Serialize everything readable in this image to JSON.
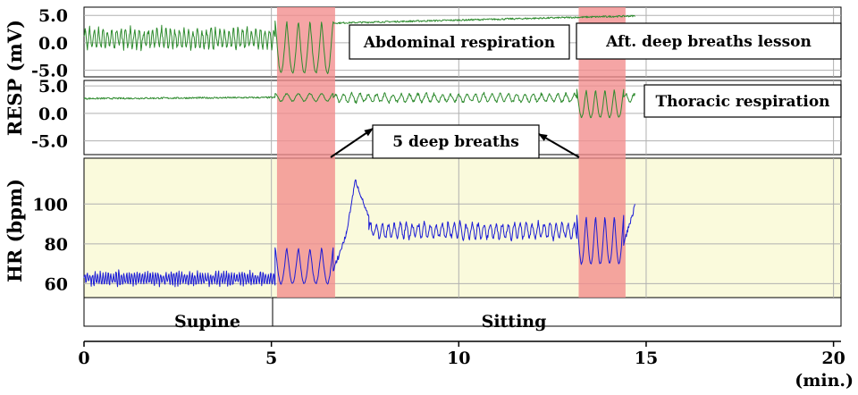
{
  "chart_data": {
    "type": "line",
    "x_unit_label": "(min.)",
    "x_ticks": [
      0,
      5,
      10,
      15,
      20
    ],
    "xlim": [
      0,
      20.2
    ],
    "grid": true,
    "panels": [
      {
        "id": "resp-abdominal",
        "ylabel": "RESP (mV)",
        "ylim": [
          -6.2,
          6.5
        ],
        "y_ticks": [
          5.0,
          0.0,
          -5.0
        ],
        "y_tick_labels": [
          "5.0",
          "0.0",
          "-5.0"
        ],
        "series": [
          {
            "name": "Abdominal respiration",
            "color": "#2e8b2e",
            "segments": [
              {
                "x_start": 0.0,
                "x_end": 5.1,
                "pattern": "oscillation",
                "center": 0.8,
                "amplitude": 2.0,
                "period_min": 0.12
              },
              {
                "x_start": 5.1,
                "x_end": 6.65,
                "pattern": "deep_breaths",
                "count": 5,
                "high": 4.0,
                "low": -5.5
              },
              {
                "x_start": 6.65,
                "x_end": 14.7,
                "pattern": "baseline",
                "from": 3.6,
                "to": 4.9
              }
            ]
          }
        ]
      },
      {
        "id": "resp-thoracic",
        "ylabel": "",
        "ylim": [
          -7.5,
          6.0
        ],
        "y_ticks": [
          5.0,
          0.0,
          -5.0
        ],
        "y_tick_labels": [
          "5.0",
          "0.0",
          "-5.0"
        ],
        "series": [
          {
            "name": "Thoracic respiration",
            "color": "#2e8b2e",
            "segments": [
              {
                "x_start": 0.0,
                "x_end": 5.1,
                "pattern": "baseline",
                "from": 2.7,
                "to": 2.9
              },
              {
                "x_start": 5.1,
                "x_end": 6.65,
                "pattern": "small_waves",
                "count": 5,
                "center": 2.9,
                "amplitude": 0.7
              },
              {
                "x_start": 6.65,
                "x_end": 13.15,
                "pattern": "oscillation",
                "center": 2.8,
                "amplitude": 0.9,
                "period_min": 0.22
              },
              {
                "x_start": 13.15,
                "x_end": 14.4,
                "pattern": "deep_breaths",
                "count": 5,
                "high": 4.3,
                "low": -0.7
              },
              {
                "x_start": 14.4,
                "x_end": 14.7,
                "pattern": "oscillation",
                "center": 2.8,
                "amplitude": 0.9,
                "period_min": 0.22
              }
            ]
          }
        ]
      },
      {
        "id": "hr",
        "ylabel": "HR (bpm)",
        "ylim": [
          53,
          123
        ],
        "y_ticks": [
          100,
          80,
          60
        ],
        "y_tick_labels": [
          "100",
          "80",
          "60"
        ],
        "series": [
          {
            "name": "HR",
            "color": "#1c1cd6",
            "segments": [
              {
                "x_start": 0.0,
                "x_end": 5.1,
                "pattern": "oscillation",
                "center": 62.5,
                "amplitude": 3.8,
                "period_min": 0.07
              },
              {
                "x_start": 5.1,
                "x_end": 6.65,
                "pattern": "deep_breaths",
                "count": 5,
                "high": 78,
                "low": 60
              },
              {
                "x_start": 6.65,
                "x_end": 7.0,
                "pattern": "ramp",
                "from": 66,
                "to": 85
              },
              {
                "x_start": 7.0,
                "x_end": 7.6,
                "pattern": "peak",
                "from": 85,
                "peak": 112,
                "to": 93
              },
              {
                "x_start": 7.6,
                "x_end": 13.15,
                "pattern": "oscillation",
                "center": 86.5,
                "amplitude": 4.5,
                "period_min": 0.16
              },
              {
                "x_start": 13.15,
                "x_end": 14.4,
                "pattern": "deep_breaths",
                "count": 5,
                "high": 94,
                "low": 70
              },
              {
                "x_start": 14.4,
                "x_end": 14.7,
                "pattern": "ramp",
                "from": 80,
                "to": 99
              }
            ]
          }
        ]
      }
    ],
    "highlight_periods": [
      {
        "x_start": 5.15,
        "x_end": 6.7,
        "color": "#f28c8c"
      },
      {
        "x_start": 13.2,
        "x_end": 14.45,
        "color": "#f28c8c"
      }
    ],
    "hr_background": "#fafadc",
    "positions": [
      {
        "label": "Supine",
        "x_start": 0,
        "x_end": 5.15
      },
      {
        "label": "Sitting",
        "x_start": 5.15,
        "x_end": 20.2
      }
    ],
    "annotations": [
      {
        "id": "abdominal",
        "text": "Abdominal respiration"
      },
      {
        "id": "lesson",
        "text": "Aft. deep breaths lesson"
      },
      {
        "id": "thoracic",
        "text": "Thoracic respiration"
      },
      {
        "id": "deep",
        "text": "5 deep breaths",
        "arrows_to_x": [
          6.65,
          13.2
        ]
      }
    ]
  }
}
